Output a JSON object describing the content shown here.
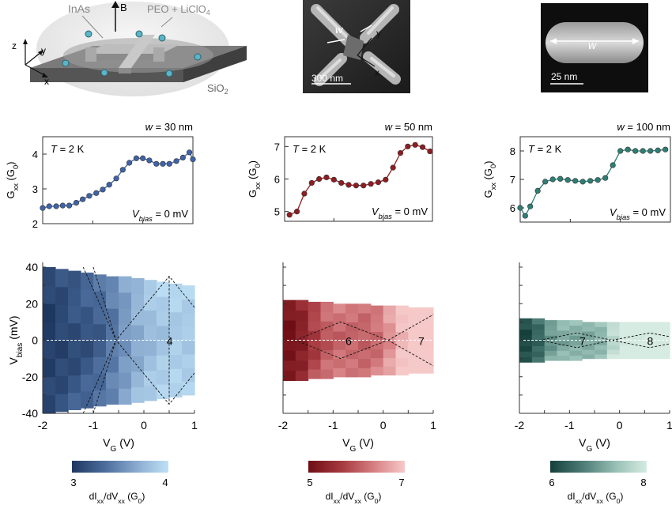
{
  "schematic": {
    "label_inas": "InAs",
    "label_b": "B",
    "label_electrolyte": "PEO + LiClO",
    "label_electrolyte_sub": "4",
    "label_substrate": "SiO",
    "label_substrate_sub": "2",
    "axis_x": "x",
    "axis_y": "y",
    "axis_z": "z"
  },
  "sem_cross": {
    "label_w": "w",
    "label_y": "y",
    "label_x": "x",
    "scalebar": "300 nm"
  },
  "sem_wire": {
    "label_w": "w",
    "scalebar": "25 nm"
  },
  "chart_data": [
    {
      "type": "line",
      "title": "w = 30 nm",
      "annotation_temp": "T = 2 K",
      "annotation_bias": "V_bias = 0 mV",
      "ylabel": "G_xx (G_0)",
      "xlim": [
        -2,
        1
      ],
      "ylim": [
        2,
        4.5
      ],
      "yticks": [
        2,
        3,
        4
      ],
      "color": "#3f63a6",
      "x": [
        -2.0,
        -1.87,
        -1.73,
        -1.6,
        -1.47,
        -1.33,
        -1.2,
        -1.07,
        -0.93,
        -0.8,
        -0.67,
        -0.53,
        -0.4,
        -0.27,
        -0.13,
        0.0,
        0.13,
        0.27,
        0.4,
        0.53,
        0.67,
        0.8,
        0.93,
        1.0
      ],
      "y": [
        2.45,
        2.5,
        2.5,
        2.52,
        2.52,
        2.6,
        2.7,
        2.8,
        2.88,
        2.98,
        3.12,
        3.3,
        3.55,
        3.75,
        3.88,
        3.88,
        3.82,
        3.72,
        3.72,
        3.72,
        3.8,
        3.9,
        4.05,
        3.85
      ]
    },
    {
      "type": "line",
      "title": "w = 50 nm",
      "annotation_temp": "T = 2 K",
      "annotation_bias": "V_bias = 0 mV",
      "ylabel": "G_xx (G_0)",
      "xlim": [
        -2,
        1
      ],
      "ylim": [
        4.7,
        7.3
      ],
      "yticks": [
        5,
        6,
        7
      ],
      "color": "#8e1d22",
      "x": [
        -1.9,
        -1.75,
        -1.6,
        -1.45,
        -1.3,
        -1.15,
        -1.0,
        -0.85,
        -0.7,
        -0.55,
        -0.4,
        -0.25,
        -0.1,
        0.05,
        0.2,
        0.35,
        0.5,
        0.65,
        0.8,
        0.95
      ],
      "y": [
        4.9,
        5.0,
        5.55,
        5.88,
        6.0,
        6.05,
        5.98,
        5.88,
        5.82,
        5.8,
        5.8,
        5.85,
        5.9,
        5.98,
        6.35,
        6.8,
        7.0,
        7.05,
        6.98,
        6.85
      ]
    },
    {
      "type": "line",
      "title": "w = 100 nm",
      "annotation_temp": "T = 2 K",
      "annotation_bias": "V_bias = 0 mV",
      "ylabel": "G_xx (G_0)",
      "xlim": [
        -2,
        1
      ],
      "ylim": [
        5.5,
        8.5
      ],
      "yticks": [
        6,
        7,
        8
      ],
      "color": "#2e7e74",
      "x": [
        -2.0,
        -1.9,
        -1.8,
        -1.65,
        -1.5,
        -1.35,
        -1.2,
        -1.05,
        -0.9,
        -0.75,
        -0.6,
        -0.45,
        -0.3,
        -0.15,
        0.0,
        0.15,
        0.3,
        0.45,
        0.6,
        0.75,
        0.9
      ],
      "y": [
        6.0,
        5.72,
        6.05,
        6.6,
        6.92,
        7.0,
        7.02,
        6.98,
        6.95,
        6.92,
        6.95,
        6.98,
        7.05,
        7.5,
        8.0,
        8.05,
        8.0,
        8.0,
        8.0,
        8.02,
        8.05
      ]
    },
    {
      "type": "heatmap",
      "xlabel": "V_G (V)",
      "ylabel": "V_bias (mV)",
      "xlim": [
        -2,
        1
      ],
      "ylim": [
        -40,
        40
      ],
      "xticks": [
        -2,
        -1,
        0,
        1
      ],
      "yticks": [
        -40,
        -20,
        0,
        20,
        40
      ],
      "bias_halfrange": [
        40,
        39,
        38,
        37,
        36,
        35,
        35,
        34,
        33,
        32,
        31,
        30
      ],
      "colormap": [
        "#1d3760",
        "#4d6e9e",
        "#8fb0d3",
        "#bfe1f6"
      ],
      "value_range": [
        3,
        4
      ],
      "gate_values": [
        3.0,
        3.05,
        3.1,
        3.15,
        3.22,
        3.35,
        3.5,
        3.62,
        3.72,
        3.78,
        3.82,
        3.8
      ],
      "diamond_label": "4",
      "colorbar_ticks": [
        "3",
        "4"
      ],
      "colorbar_label": "dI_xx/dV_xx (G_0)"
    },
    {
      "type": "heatmap",
      "xlabel": "V_G (V)",
      "ylabel": "",
      "xlim": [
        -2,
        1
      ],
      "ylim": [
        -40,
        40
      ],
      "xticks": [
        -2,
        -1,
        0,
        1
      ],
      "yticks": [],
      "bias_halfrange": [
        22,
        22,
        21,
        21,
        20,
        20,
        20,
        19,
        19,
        19,
        18,
        18
      ],
      "colormap": [
        "#6e0d14",
        "#a63a40",
        "#d98487",
        "#f6c9c9"
      ],
      "value_range": [
        5,
        7
      ],
      "gate_values": [
        5.0,
        5.2,
        5.6,
        5.9,
        6.0,
        6.0,
        5.95,
        6.05,
        6.4,
        6.8,
        7.0,
        7.0
      ],
      "diamond_label_1": "6",
      "diamond_label_2": "7",
      "colorbar_ticks": [
        "5",
        "7"
      ],
      "colorbar_label": "dI_xx/dV_xx (G_0)"
    },
    {
      "type": "heatmap",
      "xlabel": "V_G (V)",
      "ylabel": "",
      "xlim": [
        -2,
        1
      ],
      "ylim": [
        -40,
        40
      ],
      "xticks": [
        -2,
        -1,
        0,
        1
      ],
      "yticks": [],
      "bias_halfrange": [
        12,
        12,
        11,
        11,
        11,
        10,
        10,
        10,
        10,
        10,
        10,
        10
      ],
      "colormap": [
        "#163f3b",
        "#4f7f78",
        "#9cc3b9",
        "#d6ebe2"
      ],
      "value_range": [
        6,
        8
      ],
      "gate_values": [
        6.0,
        6.3,
        6.8,
        7.0,
        7.0,
        7.0,
        7.1,
        7.6,
        8.0,
        8.0,
        8.0,
        8.0
      ],
      "diamond_label_1": "7",
      "diamond_label_2": "8",
      "colorbar_ticks": [
        "6",
        "8"
      ],
      "colorbar_label": "dI_xx/dV_xx (G_0)"
    }
  ]
}
